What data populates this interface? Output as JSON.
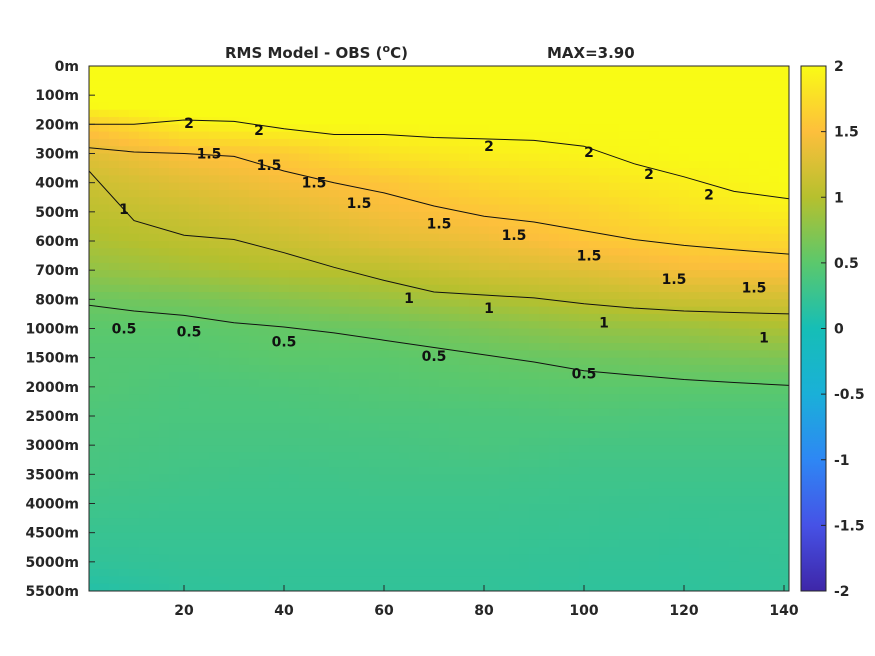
{
  "chart_data": {
    "type": "heatmap",
    "title": "RMS Model - OBS (",
    "title_unit": "o",
    "title_unit_suffix": "C)",
    "max_label": "MAX=3.90",
    "xlabel": "",
    "ylabel": "",
    "x_ticks": [
      "20",
      "40",
      "60",
      "80",
      "100",
      "120",
      "140"
    ],
    "x_tick_values": [
      20,
      40,
      60,
      80,
      100,
      120,
      140
    ],
    "xlim": [
      1,
      141
    ],
    "y_ticks": [
      "0m",
      "100m",
      "200m",
      "300m",
      "400m",
      "500m",
      "600m",
      "700m",
      "800m",
      "1000m",
      "1500m",
      "2000m",
      "2500m",
      "3000m",
      "3500m",
      "4000m",
      "4500m",
      "5000m",
      "5500m"
    ],
    "colorbar": {
      "colormap": "parula",
      "clim": [
        -2,
        2
      ],
      "ticks": [
        "2",
        "1.5",
        "1",
        "0.5",
        "0",
        "-0.5",
        "-1",
        "-1.5",
        "-2"
      ],
      "tick_values": [
        2,
        1.5,
        1,
        0.5,
        0,
        -0.5,
        -1,
        -1.5,
        -2
      ]
    },
    "field": {
      "depth_index": [
        0,
        1,
        2,
        3,
        4,
        5,
        6,
        7,
        8,
        9,
        10,
        11,
        12,
        13,
        14,
        15,
        16,
        17,
        18
      ],
      "x": [
        1,
        20,
        40,
        60,
        80,
        100,
        120,
        141
      ],
      "values": [
        [
          2.5,
          2.4,
          2.3,
          2.3,
          2.2,
          2.2,
          2.2,
          2.2
        ],
        [
          2.2,
          2.2,
          2.1,
          2.1,
          2.1,
          2.1,
          2.1,
          2.1
        ],
        [
          1.6,
          1.9,
          2.0,
          2.0,
          2.0,
          2.0,
          2.0,
          2.0
        ],
        [
          1.3,
          1.5,
          1.6,
          1.8,
          1.9,
          1.95,
          2.0,
          2.0
        ],
        [
          1.15,
          1.3,
          1.45,
          1.55,
          1.7,
          1.8,
          1.9,
          2.0
        ],
        [
          1.05,
          1.15,
          1.3,
          1.45,
          1.55,
          1.65,
          1.8,
          1.9
        ],
        [
          0.95,
          1.05,
          1.15,
          1.3,
          1.4,
          1.55,
          1.65,
          1.7
        ],
        [
          0.8,
          0.9,
          1.0,
          1.05,
          1.2,
          1.3,
          1.45,
          1.5
        ],
        [
          0.6,
          0.65,
          0.75,
          0.85,
          0.95,
          1.05,
          1.15,
          1.2
        ],
        [
          0.5,
          0.5,
          0.55,
          0.6,
          0.7,
          0.8,
          0.85,
          0.95
        ],
        [
          0.45,
          0.45,
          0.5,
          0.5,
          0.55,
          0.6,
          0.65,
          0.7
        ],
        [
          0.45,
          0.4,
          0.42,
          0.45,
          0.48,
          0.5,
          0.5,
          0.5
        ],
        [
          0.4,
          0.38,
          0.38,
          0.4,
          0.4,
          0.42,
          0.4,
          0.4
        ],
        [
          0.38,
          0.35,
          0.35,
          0.35,
          0.38,
          0.35,
          0.35,
          0.35
        ],
        [
          0.35,
          0.32,
          0.3,
          0.32,
          0.32,
          0.3,
          0.3,
          0.3
        ],
        [
          0.3,
          0.28,
          0.28,
          0.28,
          0.28,
          0.27,
          0.26,
          0.26
        ],
        [
          0.25,
          0.25,
          0.25,
          0.25,
          0.25,
          0.24,
          0.23,
          0.24
        ],
        [
          0.2,
          0.22,
          0.22,
          0.22,
          0.22,
          0.21,
          0.2,
          0.22
        ],
        [
          0.1,
          0.18,
          0.2,
          0.2,
          0.2,
          0.18,
          0.18,
          0.2
        ]
      ]
    },
    "contours": [
      {
        "level": "2",
        "x": [
          1,
          10,
          20,
          30,
          40,
          50,
          60,
          70,
          80,
          90,
          100,
          110,
          120,
          130,
          141
        ],
        "y": [
          2.0,
          2.0,
          1.85,
          1.9,
          2.15,
          2.35,
          2.35,
          2.45,
          2.5,
          2.55,
          2.75,
          3.35,
          3.8,
          4.3,
          4.55
        ]
      },
      {
        "level": "1.5",
        "x": [
          1,
          10,
          20,
          30,
          40,
          50,
          60,
          70,
          80,
          90,
          100,
          110,
          120,
          130,
          141
        ],
        "y": [
          2.8,
          2.95,
          3.0,
          3.1,
          3.6,
          4.0,
          4.35,
          4.8,
          5.15,
          5.35,
          5.65,
          5.95,
          6.15,
          6.3,
          6.45
        ]
      },
      {
        "level": "1",
        "x": [
          1,
          10,
          20,
          30,
          40,
          50,
          60,
          70,
          80,
          90,
          100,
          110,
          120,
          130,
          141
        ],
        "y": [
          3.6,
          5.3,
          5.8,
          5.95,
          6.4,
          6.9,
          7.35,
          7.75,
          7.85,
          7.95,
          8.15,
          8.3,
          8.4,
          8.45,
          8.5
        ]
      },
      {
        "level": "0.5",
        "x": [
          1,
          10,
          20,
          30,
          40,
          50,
          60,
          70,
          80,
          90,
          100,
          110,
          120,
          130,
          141
        ],
        "y": [
          8.2,
          8.4,
          8.55,
          8.8,
          8.95,
          9.15,
          9.4,
          9.65,
          9.9,
          10.15,
          10.45,
          10.6,
          10.75,
          10.85,
          10.95
        ]
      }
    ],
    "contour_labels": [
      {
        "text": "2",
        "x": 21,
        "y": 1.95
      },
      {
        "text": "2",
        "x": 35,
        "y": 2.2
      },
      {
        "text": "2",
        "x": 81,
        "y": 2.75
      },
      {
        "text": "2",
        "x": 101,
        "y": 2.95
      },
      {
        "text": "2",
        "x": 113,
        "y": 3.7
      },
      {
        "text": "2",
        "x": 125,
        "y": 4.4
      },
      {
        "text": "1.5",
        "x": 25,
        "y": 3.0
      },
      {
        "text": "1.5",
        "x": 37,
        "y": 3.4
      },
      {
        "text": "1.5",
        "x": 46,
        "y": 4.0
      },
      {
        "text": "1.5",
        "x": 55,
        "y": 4.7
      },
      {
        "text": "1.5",
        "x": 71,
        "y": 5.4
      },
      {
        "text": "1.5",
        "x": 86,
        "y": 5.8
      },
      {
        "text": "1.5",
        "x": 101,
        "y": 6.5
      },
      {
        "text": "1.5",
        "x": 118,
        "y": 7.3
      },
      {
        "text": "1.5",
        "x": 134,
        "y": 7.6
      },
      {
        "text": "1",
        "x": 8,
        "y": 4.9
      },
      {
        "text": "1",
        "x": 65,
        "y": 7.95
      },
      {
        "text": "1",
        "x": 81,
        "y": 8.3
      },
      {
        "text": "1",
        "x": 104,
        "y": 8.8
      },
      {
        "text": "1",
        "x": 136,
        "y": 9.3
      },
      {
        "text": "0.5",
        "x": 8,
        "y": 9.0
      },
      {
        "text": "0.5",
        "x": 21,
        "y": 9.1
      },
      {
        "text": "0.5",
        "x": 40,
        "y": 9.45
      },
      {
        "text": "0.5",
        "x": 70,
        "y": 9.95
      },
      {
        "text": "0.5",
        "x": 100,
        "y": 10.55
      }
    ]
  }
}
